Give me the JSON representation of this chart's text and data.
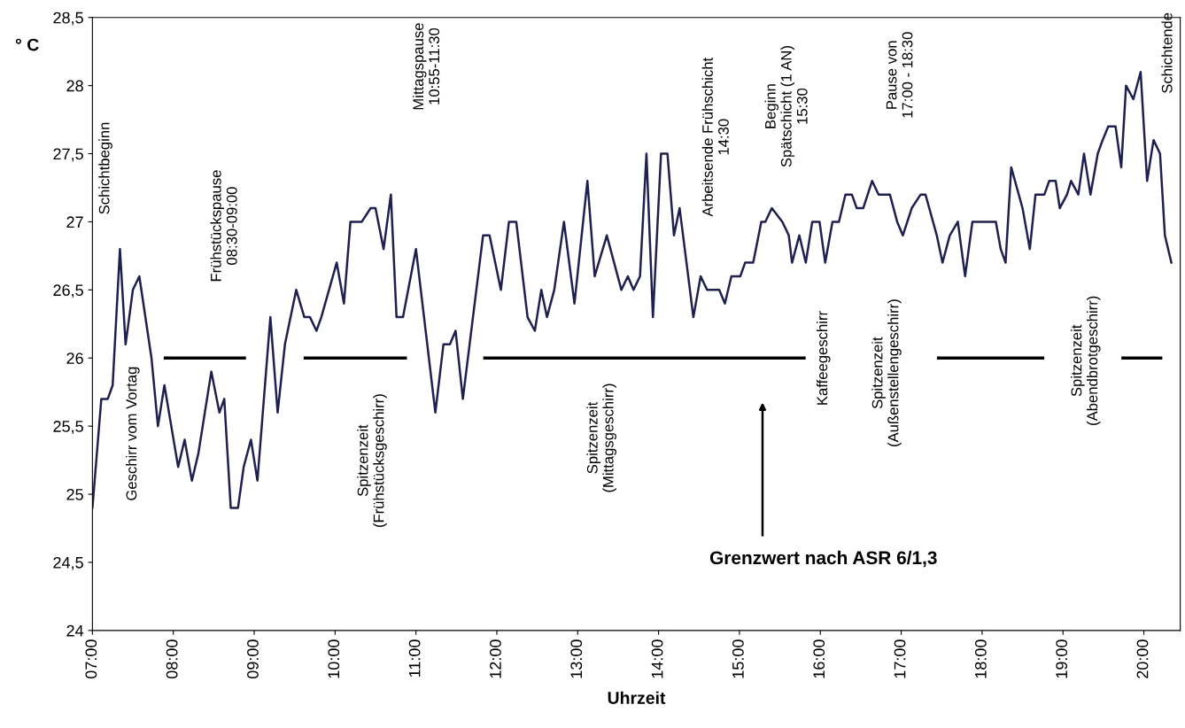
{
  "chart_data": {
    "type": "line",
    "xlabel": "Uhrzeit",
    "ylabel": "° C",
    "xlim": [
      7,
      20.45
    ],
    "ylim": [
      24,
      28.5
    ],
    "xticks": [
      {
        "value": 7,
        "label": "07:00"
      },
      {
        "value": 8,
        "label": "08:00"
      },
      {
        "value": 9,
        "label": "09:00"
      },
      {
        "value": 10,
        "label": "10:00"
      },
      {
        "value": 11,
        "label": "11:00"
      },
      {
        "value": 12,
        "label": "12:00"
      },
      {
        "value": 13,
        "label": "13:00"
      },
      {
        "value": 14,
        "label": "14:00"
      },
      {
        "value": 15,
        "label": "15:00"
      },
      {
        "value": 16,
        "label": "16:00"
      },
      {
        "value": 17,
        "label": "17:00"
      },
      {
        "value": 18,
        "label": "18:00"
      },
      {
        "value": 19,
        "label": "19:00"
      },
      {
        "value": 20,
        "label": "20:00"
      }
    ],
    "yticks": [
      24,
      {
        "value": 24.5,
        "label": "24,5"
      },
      25,
      {
        "value": 25.5,
        "label": "25,5"
      },
      26,
      {
        "value": 26.5,
        "label": "26,5"
      },
      27,
      {
        "value": 27.5,
        "label": "27,5"
      },
      28,
      {
        "value": 28.5,
        "label": "28,5"
      }
    ],
    "grid": false,
    "line_style": "solid",
    "marker": "none",
    "series": [
      {
        "color": "#1f2050",
        "x": [
          7.0,
          7.11,
          7.19,
          7.25,
          7.34,
          7.41,
          7.5,
          7.58,
          7.73,
          7.81,
          7.89,
          8.06,
          8.14,
          8.23,
          8.31,
          8.47,
          8.57,
          8.63,
          8.71,
          8.8,
          8.87,
          8.96,
          9.04,
          9.2,
          9.29,
          9.38,
          9.52,
          9.62,
          9.69,
          9.77,
          9.83,
          10.02,
          10.11,
          10.19,
          10.33,
          10.44,
          10.5,
          10.6,
          10.69,
          10.76,
          10.84,
          11.0,
          11.24,
          11.34,
          11.42,
          11.49,
          11.58,
          11.83,
          11.91,
          12.05,
          12.15,
          12.24,
          12.38,
          12.47,
          12.55,
          12.62,
          12.71,
          12.83,
          12.96,
          13.12,
          13.21,
          13.36,
          13.54,
          13.62,
          13.69,
          13.77,
          13.85,
          13.93,
          14.03,
          14.11,
          14.19,
          14.26,
          14.43,
          14.52,
          14.6,
          14.75,
          14.82,
          14.9,
          15.01,
          15.07,
          15.17,
          15.27,
          15.32,
          15.4,
          15.53,
          15.61,
          15.65,
          15.74,
          15.82,
          15.9,
          15.99,
          16.06,
          16.15,
          16.23,
          16.31,
          16.39,
          16.45,
          16.53,
          16.64,
          16.72,
          16.86,
          16.95,
          17.02,
          17.13,
          17.24,
          17.3,
          17.44,
          17.51,
          17.6,
          17.7,
          17.79,
          17.88,
          18.06,
          18.17,
          18.23,
          18.29,
          18.36,
          18.5,
          18.59,
          18.66,
          18.77,
          18.83,
          18.91,
          18.96,
          19.05,
          19.1,
          19.19,
          19.26,
          19.34,
          19.43,
          19.49,
          19.56,
          19.65,
          19.72,
          19.78,
          19.87,
          19.96,
          20.04,
          20.12,
          20.2,
          20.26,
          20.34
        ],
        "values": [
          24.9,
          25.7,
          25.7,
          25.8,
          26.8,
          26.1,
          26.5,
          26.6,
          26.0,
          25.5,
          25.8,
          25.2,
          25.4,
          25.1,
          25.3,
          25.9,
          25.6,
          25.7,
          24.9,
          24.9,
          25.2,
          25.4,
          25.1,
          26.3,
          25.6,
          26.1,
          26.5,
          26.3,
          26.3,
          26.2,
          26.3,
          26.7,
          26.4,
          27.0,
          27.0,
          27.1,
          27.1,
          26.8,
          27.2,
          26.3,
          26.3,
          26.8,
          25.6,
          26.1,
          26.1,
          26.2,
          25.7,
          26.9,
          26.9,
          26.5,
          27.0,
          27.0,
          26.3,
          26.2,
          26.5,
          26.3,
          26.5,
          27.0,
          26.4,
          27.3,
          26.6,
          26.9,
          26.5,
          26.6,
          26.5,
          26.6,
          27.5,
          26.3,
          27.5,
          27.5,
          26.9,
          27.1,
          26.3,
          26.6,
          26.5,
          26.5,
          26.4,
          26.6,
          26.6,
          26.7,
          26.7,
          27.0,
          27.0,
          27.1,
          27.0,
          26.9,
          26.7,
          26.9,
          26.7,
          27.0,
          27.0,
          26.7,
          27.0,
          27.0,
          27.2,
          27.2,
          27.1,
          27.1,
          27.3,
          27.2,
          27.2,
          27.0,
          26.9,
          27.1,
          27.2,
          27.2,
          26.9,
          26.7,
          26.9,
          27.0,
          26.6,
          27.0,
          27.0,
          27.0,
          26.8,
          26.7,
          27.4,
          27.1,
          26.8,
          27.2,
          27.2,
          27.3,
          27.3,
          27.1,
          27.2,
          27.3,
          27.2,
          27.5,
          27.2,
          27.5,
          27.6,
          27.7,
          27.7,
          27.4,
          28.0,
          27.9,
          28.1,
          27.3,
          27.6,
          27.5,
          26.9,
          26.7
        ]
      },
      {
        "color": "#000000",
        "x": [
          7.9,
          8.88
        ],
        "values": [
          26,
          26
        ]
      },
      {
        "color": "#000000",
        "x": [
          9.63,
          10.87
        ],
        "values": [
          26,
          26
        ]
      },
      {
        "color": "#000000",
        "x": [
          11.85,
          15.8
        ],
        "values": [
          26,
          26
        ]
      },
      {
        "color": "#000000",
        "x": [
          17.46,
          18.75
        ],
        "values": [
          26,
          26
        ]
      },
      {
        "color": "#000000",
        "x": [
          19.74,
          20.21
        ],
        "values": [
          26,
          26
        ]
      }
    ],
    "annotations": [
      "Schichtbeginn",
      "Geschirr vom Vortag",
      "Frühstückspause\n08:30-09:00",
      "Spitzenzeit\n(Frühstücksgeschirr)",
      "Mittagspause\n10:55-11:30",
      "Spitzenzeit\n(Mittagsgeschirr)",
      "Arbeitsende Frühschicht\n14:30",
      "Beginn\nSpätschicht (1 AN)\n15:30",
      "Kaffeegeschirr",
      "Pause von\n17:00 - 18:30",
      "Spitzenzeit\n(Außenstellengeschirr)",
      "Spitzenzeit\n(Abendbrotgeschirr)",
      "Schichtende",
      "Grenzwert nach ASR 6/1,3"
    ]
  }
}
